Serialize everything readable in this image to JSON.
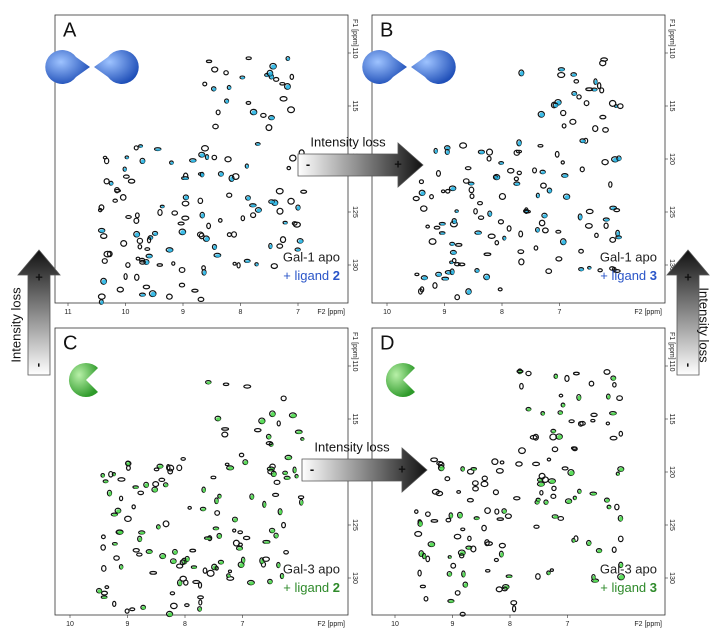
{
  "panels": [
    {
      "letter": "A",
      "protein": "Gal-1 apo",
      "ligand_prefix": "+ ligand ",
      "ligand_num": "2",
      "x_ticks": [
        "11",
        "10",
        "9",
        "8",
        "7"
      ],
      "x_axis_label": "F2 [ppm]",
      "y_ticks": [
        "110",
        "115",
        "120",
        "125",
        "130"
      ],
      "y_axis_label": "F1 [ppm]"
    },
    {
      "letter": "B",
      "protein": "Gal-1 apo",
      "ligand_prefix": "+ ligand ",
      "ligand_num": "3",
      "x_ticks": [
        "10",
        "9",
        "8",
        "7"
      ],
      "x_axis_label": "F2 [ppm]",
      "y_ticks": [
        "110",
        "115",
        "120",
        "125",
        "130"
      ],
      "y_axis_label": "F1 [ppm]"
    },
    {
      "letter": "C",
      "protein": "Gal-3 apo",
      "ligand_prefix": "+ ligand ",
      "ligand_num": "2",
      "x_ticks": [
        "10",
        "9",
        "8",
        "7"
      ],
      "x_axis_label": "F2 [ppm]",
      "y_ticks": [
        "110",
        "115",
        "120",
        "125",
        "130"
      ],
      "y_axis_label": "F1 [ppm]"
    },
    {
      "letter": "D",
      "protein": "Gal-3 apo",
      "ligand_prefix": "+ ligand ",
      "ligand_num": "3",
      "x_ticks": [
        "10",
        "9",
        "8",
        "7"
      ],
      "x_axis_label": "F2 [ppm]",
      "y_ticks": [
        "110",
        "115",
        "120",
        "125",
        "130"
      ],
      "y_axis_label": "F1 [ppm]"
    }
  ],
  "arrows": [
    {
      "label": "Intensity loss",
      "minus": "-",
      "plus": "+"
    },
    {
      "label": "Intensity loss",
      "minus": "-",
      "plus": "+"
    },
    {
      "label": "Intensity loss",
      "minus": "-",
      "plus": "+"
    },
    {
      "label": "Intensity loss",
      "minus": "-",
      "plus": "+"
    }
  ]
}
